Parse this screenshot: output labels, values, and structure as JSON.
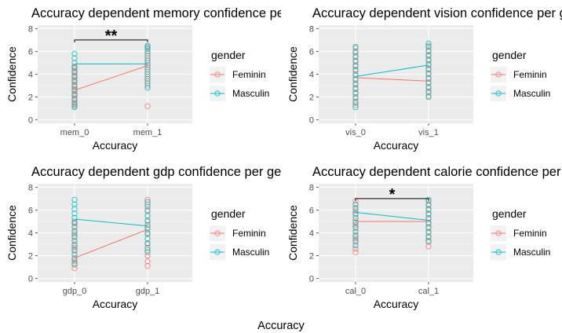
{
  "colors": {
    "feminin": "#F8766D",
    "masculin": "#00BFC4",
    "panel": "#EBEBEB",
    "grid": "#FFFFFF"
  },
  "footer_label": "Accuracy",
  "chart_data": [
    {
      "type": "scatter",
      "title": "Accuracy dependent memory confidence per gender",
      "xlabel": "Accuracy",
      "ylabel": "Confidence",
      "categories": [
        "mem_0",
        "mem_1"
      ],
      "ylim": [
        -0.3,
        8.3
      ],
      "yticks": [
        0,
        2,
        4,
        6,
        8
      ],
      "grid": true,
      "legend": {
        "title": "gender",
        "position": "right",
        "entries": [
          "Feminin",
          "Masculin"
        ]
      },
      "series": [
        {
          "name": "Feminin",
          "means": [
            2.6,
            4.75
          ],
          "points": [
            [
              1.2,
              1.3,
              1.5,
              1.7,
              1.9,
              2.1,
              2.3,
              2.5,
              2.7,
              2.9,
              3.1,
              3.3,
              3.5,
              3.7,
              3.9,
              4.1,
              4.3,
              4.5,
              4.7
            ],
            [
              1.2,
              3.0,
              3.4,
              3.8,
              4.2,
              4.6,
              5.0,
              5.4,
              5.8,
              6.2,
              6.4
            ]
          ]
        },
        {
          "name": "Masculin",
          "means": [
            4.9,
            4.9
          ],
          "points": [
            [
              1.1,
              1.4,
              1.8,
              2.2,
              2.6,
              3.0,
              3.4,
              3.8,
              4.2,
              4.6,
              5.0,
              5.4,
              5.8
            ],
            [
              2.8,
              3.2,
              3.6,
              4.0,
              4.4,
              4.8,
              5.2,
              5.6,
              6.0,
              6.3,
              6.5
            ]
          ]
        }
      ],
      "significance": {
        "label": "**",
        "y": 7.0
      }
    },
    {
      "type": "scatter",
      "title": "Accuracy dependent vision confidence per gender",
      "xlabel": "Accuracy",
      "ylabel": "Confidence",
      "categories": [
        "vis_0",
        "vis_1"
      ],
      "ylim": [
        -0.3,
        8.3
      ],
      "yticks": [
        0,
        2,
        4,
        6,
        8
      ],
      "grid": true,
      "legend": {
        "title": "gender",
        "position": "right",
        "entries": [
          "Feminin",
          "Masculin"
        ]
      },
      "series": [
        {
          "name": "Feminin",
          "means": [
            3.7,
            3.4
          ],
          "points": [
            [
              1.3,
              1.6,
              2.0,
              2.4,
              2.8,
              3.2,
              3.6,
              4.0,
              4.4,
              4.8,
              5.2,
              5.6,
              6.0,
              6.3
            ],
            [
              2.1,
              2.5,
              2.9,
              3.3,
              3.7,
              4.1,
              4.5,
              4.9,
              5.3,
              5.7,
              6.1,
              6.5
            ]
          ]
        },
        {
          "name": "Masculin",
          "means": [
            3.8,
            4.8
          ],
          "points": [
            [
              1.1,
              1.5,
              1.9,
              2.3,
              2.7,
              3.1,
              3.5,
              3.9,
              4.3,
              4.7,
              5.1,
              5.5,
              5.9,
              6.4
            ],
            [
              2.0,
              2.4,
              2.8,
              3.2,
              3.6,
              4.0,
              4.4,
              4.8,
              5.2,
              5.6,
              6.0,
              6.4,
              6.7
            ]
          ]
        }
      ],
      "significance": null
    },
    {
      "type": "scatter",
      "title": "Accuracy dependent gdp confidence per gender",
      "xlabel": "Accuracy",
      "ylabel": "Confidence",
      "categories": [
        "gdp_0",
        "gdp_1"
      ],
      "ylim": [
        -0.3,
        8.3
      ],
      "yticks": [
        0,
        2,
        4,
        6,
        8
      ],
      "grid": true,
      "legend": {
        "title": "gender",
        "position": "right",
        "entries": [
          "Feminin",
          "Masculin"
        ]
      },
      "series": [
        {
          "name": "Feminin",
          "means": [
            1.8,
            4.3
          ],
          "points": [
            [
              0.9,
              1.2,
              1.5,
              1.8,
              2.1,
              2.4,
              2.7,
              3.0,
              3.3,
              3.6,
              3.9,
              4.2,
              4.5,
              4.8,
              5.0
            ],
            [
              1.1,
              1.5,
              2.0,
              2.5,
              3.0,
              3.5,
              4.0,
              4.5,
              5.0,
              5.5,
              6.0,
              6.5,
              6.9
            ]
          ]
        },
        {
          "name": "Masculin",
          "means": [
            5.2,
            4.6
          ],
          "points": [
            [
              1.3,
              1.7,
              2.1,
              2.5,
              2.9,
              3.3,
              3.7,
              4.1,
              4.5,
              4.9,
              5.3,
              5.7,
              6.1,
              6.5,
              6.9
            ],
            [
              2.3,
              2.7,
              3.1,
              3.5,
              3.9,
              4.3,
              4.7,
              5.1,
              5.5,
              5.9,
              6.3,
              6.7
            ]
          ]
        }
      ],
      "significance": null
    },
    {
      "type": "scatter",
      "title": "Accuracy dependent calorie confidence per gender",
      "xlabel": "Accuracy",
      "ylabel": "Confidence",
      "categories": [
        "cal_0",
        "cal_1"
      ],
      "ylim": [
        -0.3,
        8.3
      ],
      "yticks": [
        0,
        2,
        4,
        6,
        8
      ],
      "grid": true,
      "legend": {
        "title": "gender",
        "position": "right",
        "entries": [
          "Feminin",
          "Masculin"
        ]
      },
      "series": [
        {
          "name": "Feminin",
          "means": [
            5.0,
            5.0
          ],
          "points": [
            [
              2.3,
              2.6,
              2.9,
              3.2,
              3.5,
              3.8,
              4.1,
              4.4,
              4.7,
              5.0,
              5.3,
              5.6,
              5.9,
              6.2,
              6.5,
              6.8
            ],
            [
              2.8,
              3.2,
              3.6,
              4.0,
              4.4,
              4.8,
              5.2,
              5.6,
              6.0,
              6.4,
              6.8
            ]
          ]
        },
        {
          "name": "Masculin",
          "means": [
            5.8,
            5.1
          ],
          "points": [
            [
              2.9,
              3.3,
              3.7,
              4.1,
              4.5,
              4.9,
              5.3,
              5.7,
              6.1,
              6.5
            ],
            [
              3.3,
              3.7,
              4.1,
              4.5,
              4.9,
              5.3,
              5.7,
              6.1,
              6.5,
              6.9
            ]
          ]
        }
      ],
      "significance": {
        "label": "*",
        "y": 7.0
      }
    }
  ]
}
